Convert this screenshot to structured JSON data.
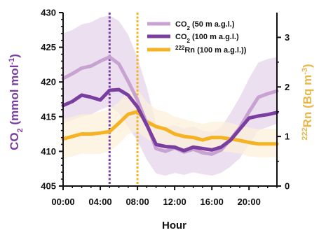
{
  "chart_data": {
    "type": "line",
    "x_unit": "hour",
    "x_range": [
      0,
      23
    ],
    "x_ticks": [
      0,
      4,
      8,
      12,
      16,
      20
    ],
    "x_tick_labels": [
      "00:00",
      "04:00",
      "08:00",
      "12:00",
      "16:00",
      "20:00"
    ],
    "xlabel": "Hour",
    "ylabel_left": {
      "base": "CO",
      "sub": "2",
      "rest": " (mmol mol",
      "sup": "-1",
      "end": ")"
    },
    "ylabel_right": {
      "pre_sup": "222",
      "base": "Rn (Bq m",
      "sup": "-3",
      "end": ")"
    },
    "ylim_left": [
      405,
      430
    ],
    "left_ticks": [
      405,
      410,
      415,
      420,
      425,
      430
    ],
    "ylim_right": [
      0,
      3.5
    ],
    "right_ticks": [
      0,
      1,
      2,
      3
    ],
    "series": [
      {
        "name_parts": {
          "base": "CO",
          "sub": "2",
          "rest": " (50 m a.g.l.)"
        },
        "axis": "left",
        "color": "#c8a3d1",
        "band_color": "#e3d2ea",
        "x": [
          0,
          1,
          2,
          3,
          4,
          5,
          6,
          7,
          8,
          9,
          10,
          11,
          12,
          13,
          14,
          15,
          16,
          17,
          18,
          19,
          20,
          21,
          22,
          23
        ],
        "y": [
          420.5,
          421.2,
          422.0,
          422.3,
          423.0,
          423.6,
          422.6,
          420.1,
          417.4,
          414.0,
          410.4,
          410.0,
          410.5,
          409.9,
          410.3,
          409.8,
          409.6,
          410.2,
          411.7,
          413.4,
          415.7,
          417.8,
          418.3,
          418.7
        ],
        "band_low": [
          414.0,
          414.5,
          415.0,
          415.3,
          416.0,
          416.5,
          415.5,
          413.5,
          411.5,
          408.8,
          406.8,
          406.5,
          406.9,
          406.6,
          407.0,
          406.7,
          406.5,
          406.9,
          407.8,
          409.0,
          411.0,
          413.0,
          413.5,
          414.0
        ],
        "band_high": [
          427.0,
          427.5,
          428.3,
          428.6,
          429.3,
          429.6,
          428.8,
          426.8,
          423.5,
          419.2,
          414.0,
          413.5,
          413.8,
          413.3,
          413.6,
          413.0,
          412.8,
          413.5,
          415.5,
          417.8,
          420.5,
          422.8,
          423.3,
          423.6
        ]
      },
      {
        "name_parts": {
          "base": "CO",
          "sub": "2",
          "rest": " (100 m a.g.l.)"
        },
        "axis": "left",
        "color": "#7a3ea0",
        "x": [
          0,
          1,
          2,
          3,
          4,
          5,
          6,
          7,
          8,
          9,
          10,
          11,
          12,
          13,
          14,
          15,
          16,
          17,
          18,
          19,
          20,
          21,
          22,
          23
        ],
        "y": [
          416.6,
          417.2,
          418.1,
          417.8,
          417.4,
          418.8,
          418.9,
          418.1,
          416.4,
          413.8,
          411.0,
          410.7,
          410.6,
          410.1,
          410.6,
          410.4,
          410.2,
          410.6,
          411.6,
          413.2,
          414.8,
          415.1,
          415.3,
          415.6
        ]
      },
      {
        "name_parts": {
          "pre_sup": "222",
          "rest": "Rn (100 m a.g.l.))"
        },
        "axis": "right",
        "color": "#f5b324",
        "band_color": "#fdf0d8",
        "x": [
          0,
          1,
          2,
          3,
          4,
          5,
          6,
          7,
          8,
          9,
          10,
          11,
          12,
          13,
          14,
          15,
          16,
          17,
          18,
          19,
          20,
          21,
          22,
          23
        ],
        "y": [
          0.95,
          1.0,
          1.05,
          1.05,
          1.07,
          1.1,
          1.27,
          1.45,
          1.5,
          1.3,
          1.2,
          1.15,
          1.05,
          1.0,
          0.98,
          0.93,
          0.98,
          0.98,
          0.95,
          0.92,
          0.88,
          0.85,
          0.85,
          0.85
        ],
        "band_low": [
          0.55,
          0.6,
          0.65,
          0.65,
          0.65,
          0.7,
          0.85,
          1.05,
          1.1,
          0.95,
          0.85,
          0.8,
          0.75,
          0.7,
          0.7,
          0.65,
          0.7,
          0.7,
          0.68,
          0.65,
          0.6,
          0.58,
          0.58,
          0.58
        ],
        "band_high": [
          1.35,
          1.4,
          1.45,
          1.45,
          1.5,
          1.55,
          1.7,
          1.9,
          1.95,
          1.7,
          1.55,
          1.5,
          1.4,
          1.35,
          1.3,
          1.25,
          1.3,
          1.3,
          1.28,
          1.22,
          1.18,
          1.15,
          1.15,
          1.15
        ]
      }
    ],
    "vlines": [
      {
        "x": 5,
        "color": "#7a3ea0"
      },
      {
        "x": 8,
        "color": "#f5b324"
      }
    ],
    "legend_placement": "top-right",
    "grid": false,
    "left_axis_color": "#7a3ea0",
    "right_axis_color": "#e8b84a"
  }
}
